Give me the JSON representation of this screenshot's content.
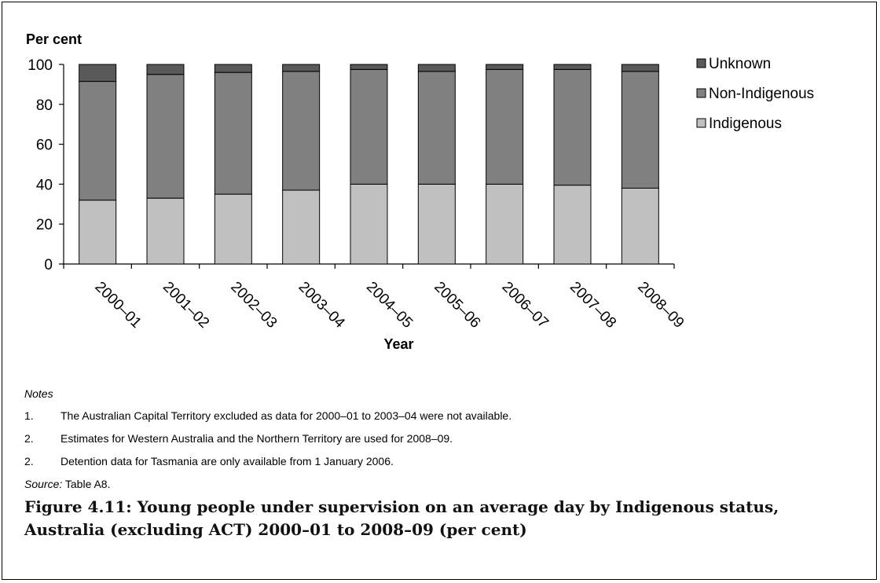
{
  "chart_data": {
    "type": "bar",
    "stacked": true,
    "ylabel": "Per cent",
    "xlabel": "Year",
    "ylim": [
      0,
      100
    ],
    "yticks": [
      0,
      20,
      40,
      60,
      80,
      100
    ],
    "grid": false,
    "legend_position": "right",
    "categories": [
      "2000–01",
      "2001–02",
      "2002–03",
      "2003–04",
      "2004–05",
      "2005–06",
      "2006–07",
      "2007–08",
      "2008–09"
    ],
    "series": [
      {
        "name": "Indigenous",
        "color": "#c0c0c0",
        "values": [
          32,
          33,
          35,
          37,
          40,
          40,
          40,
          39.5,
          38
        ]
      },
      {
        "name": "Non-Indigenous",
        "color": "#808080",
        "values": [
          59.5,
          62,
          61,
          59.5,
          57.5,
          56.5,
          57.5,
          58,
          58.5
        ]
      },
      {
        "name": "Unknown",
        "color": "#595959",
        "values": [
          8.5,
          5,
          4,
          3.5,
          2.5,
          3.5,
          2.5,
          2.5,
          3.5
        ]
      }
    ],
    "legend_order": [
      "Unknown",
      "Non-Indigenous",
      "Indigenous"
    ]
  },
  "notes": {
    "heading": "Notes",
    "items": [
      {
        "num": "1.",
        "text": "The Australian Capital Territory excluded as data for 2000–01 to 2003–04 were not available."
      },
      {
        "num": "2.",
        "text": "Estimates for Western Australia and the Northern Territory are used for 2008–09."
      },
      {
        "num": "2.",
        "text": "Detention data for Tasmania are only available from 1 January 2006."
      }
    ],
    "source_label": "Source:",
    "source_text": " Table A8."
  },
  "caption": "Figure 4.11: Young people under supervision on an average day by Indigenous status, Australia (excluding ACT) 2000–01 to 2008–09 (per cent)"
}
